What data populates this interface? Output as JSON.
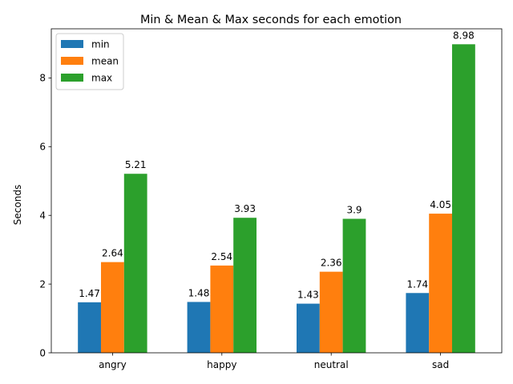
{
  "chart_data": {
    "type": "bar",
    "title": "Min & Mean & Max  seconds for each emotion",
    "xlabel": "",
    "ylabel": "Seconds",
    "categories": [
      "angry",
      "happy",
      "neutral",
      "sad"
    ],
    "series": [
      {
        "name": "min",
        "color": "#1f77b4",
        "values": [
          1.47,
          1.48,
          1.43,
          1.74
        ],
        "labels": [
          "1.47",
          "1.48",
          "1.43",
          "1.74"
        ]
      },
      {
        "name": "mean",
        "color": "#ff7f0e",
        "values": [
          2.64,
          2.54,
          2.36,
          4.05
        ],
        "labels": [
          "2.64",
          "2.54",
          "2.36",
          "4.05"
        ]
      },
      {
        "name": "max",
        "color": "#2ca02c",
        "values": [
          5.21,
          3.93,
          3.9,
          8.98
        ],
        "labels": [
          "5.21",
          "3.93",
          "3.9",
          "8.98"
        ]
      }
    ],
    "ylim": [
      0,
      9.43
    ],
    "yticks": [
      0,
      2,
      4,
      6,
      8
    ],
    "ytick_labels": [
      "0",
      "2",
      "4",
      "6",
      "8"
    ],
    "grid": false,
    "legend": "top-left"
  }
}
